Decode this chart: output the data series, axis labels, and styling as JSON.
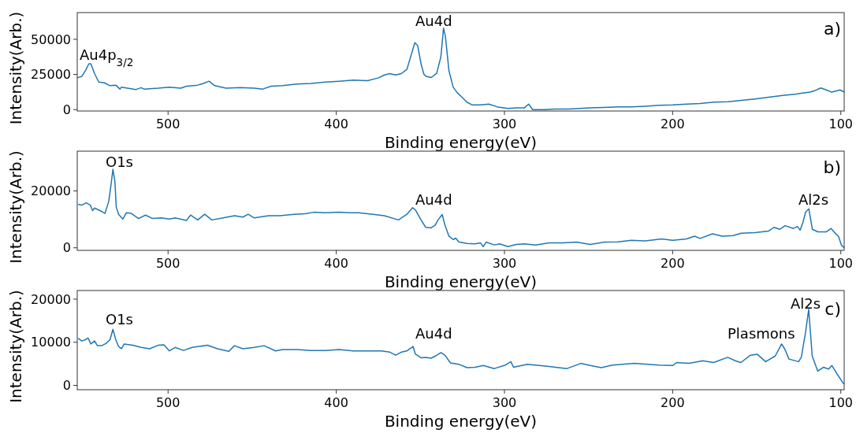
{
  "chart_data": [
    {
      "type": "line",
      "xlabel": "Binding energy(eV)",
      "ylabel": "Intensity(Arb.)",
      "xlim": [
        554,
        98
      ],
      "ylim": [
        -1000,
        69000
      ],
      "xticks": [
        500,
        400,
        300,
        200,
        100
      ],
      "yticks": [
        0,
        25000,
        50000
      ],
      "x": [
        554,
        551.3,
        548.7,
        547.1,
        545.9,
        543.7,
        541.2,
        537.8,
        534.5,
        531.1,
        528.6,
        527.7,
        522.7,
        519.3,
        516,
        514.3,
        505.9,
        499.2,
        492.4,
        489.1,
        482.4,
        479,
        475.6,
        472.3,
        465.5,
        457.1,
        448.7,
        443.7,
        438.7,
        431.9,
        423.5,
        415.1,
        406.7,
        398.3,
        389.9,
        381.5,
        374.8,
        371.4,
        368.1,
        364.7,
        361.3,
        358,
        355.5,
        353.3,
        351.6,
        349.6,
        347.9,
        346.8,
        343.6,
        340.3,
        337.8,
        336.2,
        335.1,
        333,
        330.5,
        328.1,
        325.6,
        322.3,
        319.1,
        314.2,
        309.3,
        304.4,
        297.9,
        293,
        288.1,
        285.6,
        283.2,
        276.7,
        270.1,
        262,
        255.5,
        248.9,
        240.8,
        232.6,
        224.5,
        216.3,
        208.2,
        200,
        191.8,
        183.7,
        175.6,
        167.3,
        159.2,
        151.1,
        142.9,
        134.7,
        126.6,
        118.4,
        115.2,
        111.9,
        108.6,
        105.4,
        100.5,
        98
      ],
      "series": [
        {
          "color": "#1f77b4",
          "values": [
            22600,
            23600,
            28600,
            32600,
            32600,
            25600,
            19600,
            19000,
            17000,
            17400,
            14600,
            16000,
            15000,
            14200,
            15600,
            14600,
            15200,
            16000,
            15200,
            16600,
            17400,
            18600,
            20200,
            17000,
            15200,
            15600,
            15200,
            14600,
            16600,
            17000,
            18200,
            18600,
            19600,
            20200,
            21000,
            20600,
            22600,
            24600,
            25600,
            24600,
            25600,
            28600,
            38600,
            47600,
            45600,
            32600,
            25200,
            23800,
            22800,
            25800,
            37500,
            58000,
            52100,
            27700,
            16000,
            12100,
            9200,
            5300,
            3300,
            3300,
            3900,
            2000,
            800,
            1300,
            1300,
            3900,
            0,
            0,
            400,
            400,
            800,
            1300,
            1500,
            2000,
            2000,
            2400,
            3000,
            3300,
            3900,
            4300,
            5300,
            5600,
            6600,
            7600,
            8800,
            10100,
            11100,
            12400,
            13600,
            15400,
            14000,
            12400,
            14000,
            12600
          ]
        }
      ],
      "annotations": [
        "Au4p$_{3/2}$",
        "Au4d",
        "a)"
      ]
    },
    {
      "type": "line",
      "xlabel": "Binding energy(eV)",
      "ylabel": "Intensity(Arb.)",
      "xlim": [
        554,
        98
      ],
      "ylim": [
        -900,
        34000
      ],
      "xticks": [
        500,
        400,
        300,
        200,
        100
      ],
      "yticks": [
        0,
        20000
      ],
      "x": [
        553.4,
        551.3,
        548.7,
        546.2,
        544.9,
        543.7,
        539.5,
        537.5,
        535.3,
        534,
        532.8,
        531.6,
        530.8,
        529.4,
        526.9,
        524.9,
        521.8,
        517.6,
        513.4,
        509.2,
        504.2,
        499.2,
        495.8,
        489.1,
        486.6,
        482.4,
        478.2,
        474,
        467.2,
        460.5,
        455.5,
        452.4,
        448.7,
        440.3,
        433.6,
        425.2,
        418.5,
        413.4,
        406.7,
        398.3,
        391.6,
        386.6,
        378.2,
        371.4,
        363,
        358,
        354.6,
        352.9,
        349.6,
        346.8,
        343.6,
        341.1,
        339.5,
        337,
        335.4,
        333,
        330.5,
        328.9,
        327.2,
        322.3,
        317.5,
        314.2,
        312.6,
        310.9,
        306,
        302.8,
        297.9,
        293,
        288.1,
        281.6,
        273.4,
        265.3,
        257.1,
        248.9,
        240.8,
        232.6,
        224.5,
        216.3,
        206.5,
        200,
        191.8,
        186.9,
        183.7,
        176.3,
        170.6,
        164.1,
        159.2,
        151.1,
        142.9,
        139.7,
        136.4,
        133.1,
        128.2,
        125.8,
        124.2,
        122.5,
        120.9,
        119,
        116.9,
        113.6,
        108.7,
        105.8,
        103,
        101.4,
        99.7,
        98.1
      ],
      "series": [
        {
          "color": "#1f77b4",
          "values": [
            15300,
            15000,
            15800,
            15000,
            13100,
            14000,
            12800,
            12100,
            16300,
            21800,
            27600,
            23300,
            14300,
            11800,
            10100,
            12300,
            12100,
            10300,
            11500,
            10300,
            10500,
            10100,
            10500,
            9600,
            11500,
            9800,
            11800,
            9800,
            10500,
            11300,
            10800,
            11800,
            10500,
            11300,
            11300,
            11800,
            12000,
            12500,
            12300,
            12500,
            12300,
            12300,
            11800,
            11300,
            9800,
            11800,
            14100,
            13300,
            9800,
            7200,
            7000,
            8000,
            9800,
            11700,
            8000,
            4100,
            2900,
            3400,
            2100,
            1500,
            1400,
            1700,
            400,
            2000,
            1000,
            1400,
            400,
            1200,
            1400,
            1000,
            1700,
            1700,
            2000,
            1200,
            2000,
            2100,
            2600,
            2400,
            3100,
            2600,
            3100,
            4100,
            3300,
            4900,
            4100,
            4300,
            5100,
            5300,
            5900,
            7200,
            6500,
            7800,
            6800,
            7500,
            6200,
            9000,
            12600,
            13700,
            6500,
            5600,
            5600,
            6800,
            4900,
            4100,
            1000,
            0
          ]
        }
      ],
      "annotations": [
        "O1s",
        "Au4d",
        "Al2s",
        "b)"
      ]
    },
    {
      "type": "line",
      "xlabel": "Binding energy(eV)",
      "ylabel": "Intensity(Arb.)",
      "xlim": [
        554,
        98
      ],
      "ylim": [
        -1000,
        22000
      ],
      "xticks": [
        500,
        400,
        300,
        200,
        100
      ],
      "yticks": [
        0,
        10000,
        20000
      ],
      "x": [
        553.4,
        551.3,
        549.1,
        547.6,
        545.9,
        543.7,
        542,
        539.5,
        537,
        534.5,
        532.8,
        531.1,
        529.4,
        527.7,
        526.1,
        521,
        516,
        511,
        505.9,
        502.5,
        499.2,
        495.8,
        490.8,
        485.7,
        476.5,
        470.6,
        463.9,
        460.5,
        455.5,
        448.7,
        442.9,
        436.1,
        431.9,
        423.5,
        415.1,
        406.7,
        398.3,
        389.9,
        381.5,
        373.1,
        368.1,
        364.7,
        361.3,
        358,
        354.3,
        353,
        349.6,
        346.8,
        343.6,
        341.1,
        337.8,
        335.4,
        332.1,
        327.2,
        322.3,
        317.5,
        312.6,
        306,
        299.5,
        296.2,
        294.6,
        286.5,
        281.6,
        273.4,
        262.8,
        254.6,
        248.9,
        242.4,
        235.8,
        222.8,
        208.2,
        200,
        197.6,
        190.2,
        182.1,
        175.6,
        167.3,
        162.7,
        159.4,
        153.7,
        149.6,
        144.7,
        139,
        135.2,
        133.3,
        130.8,
        125.1,
        123.5,
        121,
        119.1,
        117,
        113.7,
        110.4,
        107.2,
        105.3,
        102.3,
        98.2
      ],
      "series": [
        {
          "color": "#1f77b4",
          "values": [
            10900,
            10300,
            10600,
            11000,
            9600,
            10300,
            9200,
            9200,
            9700,
            10600,
            13000,
            10600,
            9000,
            8500,
            9600,
            9300,
            8800,
            8500,
            9300,
            9400,
            8000,
            8800,
            8100,
            8800,
            9300,
            8500,
            7900,
            9200,
            8500,
            8800,
            9200,
            8000,
            8300,
            8300,
            8100,
            8100,
            8300,
            8000,
            8000,
            8000,
            7700,
            7000,
            7700,
            8000,
            9000,
            7300,
            6400,
            6500,
            6300,
            6800,
            7600,
            7000,
            5200,
            4900,
            4100,
            4200,
            4600,
            3900,
            4700,
            5500,
            4200,
            4900,
            4700,
            4400,
            3900,
            5100,
            4600,
            4100,
            4700,
            5100,
            4700,
            4600,
            5300,
            5100,
            5700,
            5300,
            6500,
            5700,
            5300,
            7000,
            7200,
            5500,
            6800,
            9600,
            8400,
            6100,
            5500,
            6500,
            12200,
            17600,
            6800,
            3300,
            4200,
            3800,
            4600,
            2700,
            300
          ]
        }
      ],
      "annotations": [
        "O1s",
        "Au4d",
        "Plasmons",
        "Al2s",
        "c)"
      ]
    }
  ]
}
